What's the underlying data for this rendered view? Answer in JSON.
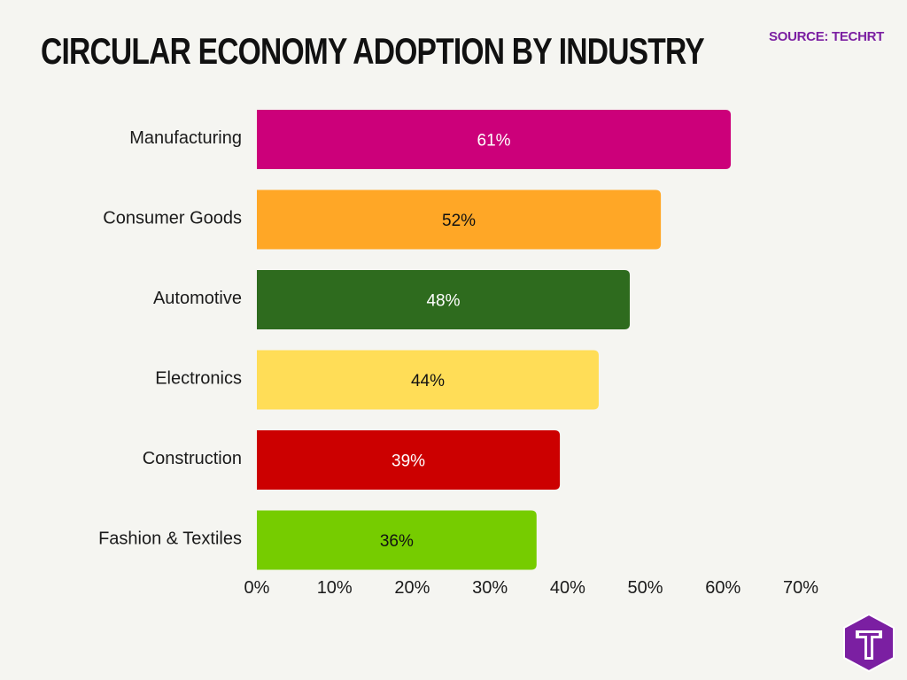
{
  "header": {
    "title": "CIRCULAR ECONOMY ADOPTION BY INDUSTRY",
    "source": "SOURCE: TECHRT"
  },
  "brand": {
    "accent": "#7b1fa2",
    "background": "#f5f5f1",
    "logo_icon": "techrt-t-logo-icon"
  },
  "chart_data": {
    "type": "bar",
    "orientation": "horizontal",
    "categories": [
      "Manufacturing",
      "Consumer Goods",
      "Automotive",
      "Electronics",
      "Construction",
      "Fashion & Textiles"
    ],
    "values": [
      61,
      52,
      48,
      44,
      39,
      36
    ],
    "data_labels": [
      "61%",
      "52%",
      "48%",
      "44%",
      "39%",
      "36%"
    ],
    "colors": [
      "#cc007a",
      "#ffa726",
      "#2e6b1e",
      "#ffdd57",
      "#cc0000",
      "#76cc00"
    ],
    "label_colors": [
      "#ffffff",
      "#111111",
      "#ffffff",
      "#111111",
      "#ffffff",
      "#111111"
    ],
    "x_ticks": [
      0,
      10,
      20,
      30,
      40,
      50,
      60,
      70
    ],
    "x_tick_labels": [
      "0%",
      "10%",
      "20%",
      "30%",
      "40%",
      "50%",
      "60%",
      "70%"
    ],
    "xlim": [
      0,
      70
    ],
    "title": "CIRCULAR ECONOMY ADOPTION BY INDUSTRY",
    "xlabel": "",
    "ylabel": "",
    "grid": false,
    "legend": false
  }
}
